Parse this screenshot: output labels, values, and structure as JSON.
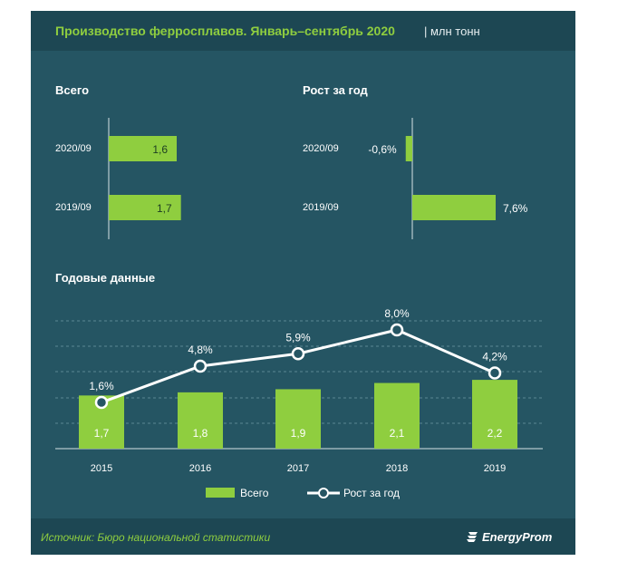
{
  "header": {
    "title": "Производство ферросплавов. Январь–сентябрь 2020",
    "unit": "| млн тонн"
  },
  "colors": {
    "panel_bg": "#255563",
    "title_bg": "#1d4753",
    "bar_green": "#8fce3f",
    "text_white": "#ffffff"
  },
  "chart_data": [
    {
      "type": "bar",
      "orientation": "horizontal",
      "title": "Всего",
      "categories": [
        "2020/09",
        "2019/09"
      ],
      "values": [
        1.6,
        1.7
      ],
      "value_labels": [
        "1,6",
        "1,7"
      ],
      "xlim": [
        0,
        2.7
      ]
    },
    {
      "type": "bar",
      "orientation": "horizontal",
      "title": "Рост за год",
      "categories": [
        "2020/09",
        "2019/09"
      ],
      "values": [
        -0.6,
        7.6
      ],
      "value_labels": [
        "-0,6%",
        "7,6%"
      ],
      "xlim": [
        -0.6,
        10
      ]
    },
    {
      "type": "bar",
      "title": "Годовые данные",
      "categories": [
        "2015",
        "2016",
        "2017",
        "2018",
        "2019"
      ],
      "ylim": [
        0,
        3.2
      ],
      "y2lim": [
        -3,
        10
      ],
      "grid": true,
      "legend": "bottom",
      "series": [
        {
          "name": "Всего",
          "type": "bar",
          "values": [
            1.7,
            1.8,
            1.9,
            2.1,
            2.2
          ],
          "value_labels": [
            "1,7",
            "1,8",
            "1,9",
            "2,1",
            "2,2"
          ]
        },
        {
          "name": "Рост за год",
          "type": "line",
          "axis": "secondary",
          "values": [
            1.6,
            4.8,
            5.9,
            8.0,
            4.2
          ],
          "value_labels": [
            "1,6%",
            "4,8%",
            "5,9%",
            "8,0%",
            "4,2%"
          ]
        }
      ]
    }
  ],
  "footer": {
    "source": "Источник: Бюро национальной статистики",
    "brand": "EnergyProm"
  }
}
